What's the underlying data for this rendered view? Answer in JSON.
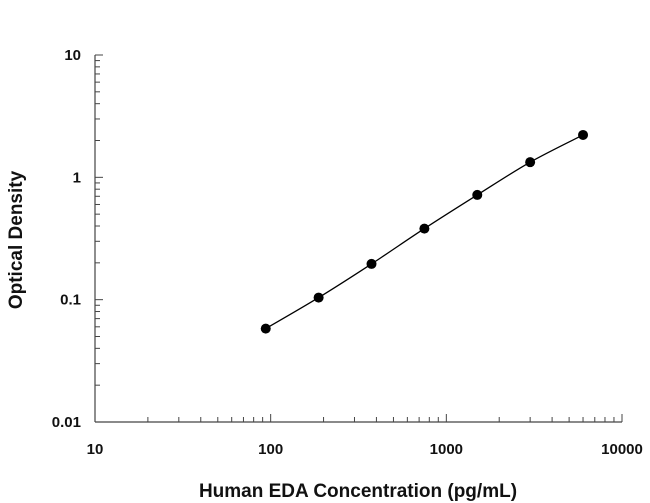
{
  "chart_data": {
    "type": "scatter",
    "title": "",
    "xlabel": "Human EDA Concentration (pg/mL)",
    "ylabel": "Optical Density",
    "x_scale": "log",
    "y_scale": "log",
    "xlim": [
      10,
      10000
    ],
    "ylim": [
      0.01,
      10
    ],
    "x_ticks": [
      "10",
      "100",
      "1000",
      "10000"
    ],
    "y_ticks": [
      "0.01",
      "0.1",
      "1",
      "10"
    ],
    "grid": false,
    "legend": "none",
    "series": [
      {
        "x": [
          93.75,
          187.5,
          375,
          750,
          1500,
          3000,
          6000
        ],
        "y": [
          0.058,
          0.104,
          0.196,
          0.381,
          0.718,
          1.33,
          2.22
        ],
        "marker": "filled-circle",
        "fit_line": "smooth-curve",
        "color": "#000000"
      }
    ]
  }
}
